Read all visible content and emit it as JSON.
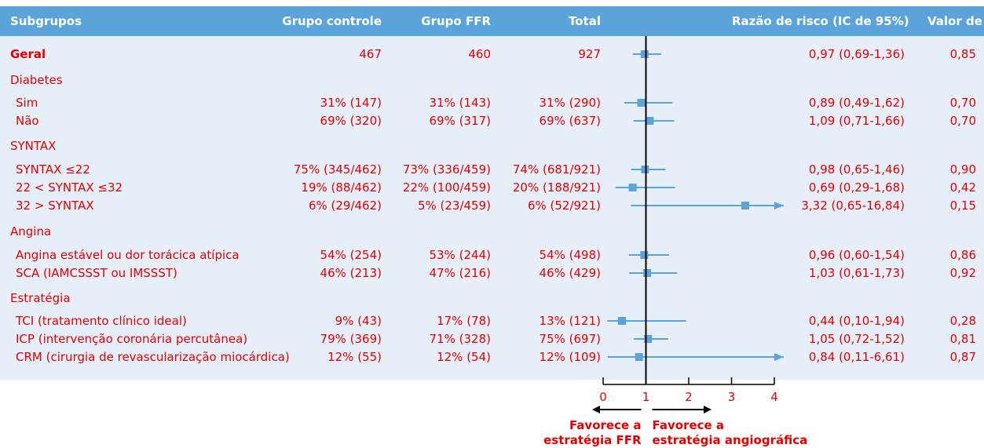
{
  "header": {
    "subgroups": "Subgrupos",
    "control": "Grupo controle",
    "ffr": "Grupo FFR",
    "total": "Total",
    "rr": "Razão de risco (IC de 95%)",
    "p": "Valor de P"
  },
  "chart_data": {
    "type": "forest",
    "xlim": [
      0,
      4
    ],
    "reference_line": 1,
    "ticks": [
      "0",
      "1",
      "2",
      "3",
      "4"
    ],
    "favors_left": [
      "Favorece a",
      "estratégia FFR"
    ],
    "favors_right": [
      "Favorece a",
      "estratégia angiográfica"
    ],
    "colors": {
      "header_bg": "#5ba3d9",
      "band": "#e6eef8",
      "marker": "#5ba3d9",
      "text": "#e60000"
    },
    "rows": [
      {
        "type": "item",
        "bold": true,
        "label": "Geral",
        "control": "467",
        "ffr": "460",
        "total": "927",
        "hr": 0.97,
        "lo": 0.69,
        "hi": 1.36,
        "ci": "0,97 (0,69-1,36)",
        "p": "0,85"
      },
      {
        "type": "group",
        "label": "Diabetes"
      },
      {
        "type": "item",
        "label": "Sim",
        "control": "31% (147)",
        "ffr": "31% (143)",
        "total": "31% (290)",
        "hr": 0.89,
        "lo": 0.49,
        "hi": 1.62,
        "ci": "0,89 (0,49-1,62)",
        "p": "0,70"
      },
      {
        "type": "item",
        "label": "Não",
        "control": "69% (320)",
        "ffr": "69% (317)",
        "total": "69% (637)",
        "hr": 1.09,
        "lo": 0.71,
        "hi": 1.66,
        "ci": "1,09 (0,71-1,66)",
        "p": "0,70"
      },
      {
        "type": "group",
        "label": "SYNTAX"
      },
      {
        "type": "item",
        "label": "SYNTAX ≤22",
        "control": "75% (345/462)",
        "ffr": "73% (336/459)",
        "total": "74% (681/921)",
        "hr": 0.98,
        "lo": 0.65,
        "hi": 1.46,
        "ci": "0,98 (0,65-1,46)",
        "p": "0,90"
      },
      {
        "type": "item",
        "label": "22 < SYNTAX ≤32",
        "control": "19% (88/462)",
        "ffr": "22% (100/459)",
        "total": "20% (188/921)",
        "hr": 0.69,
        "lo": 0.29,
        "hi": 1.68,
        "ci": "0,69 (0,29-1,68)",
        "p": "0,42"
      },
      {
        "type": "item",
        "label": "32 > SYNTAX",
        "control": "6% (29/462)",
        "ffr": "5% (23/459)",
        "total": "6% (52/921)",
        "hr": 3.32,
        "lo": 0.65,
        "hi": 16.84,
        "ci": "3,32 (0,65-16,84)",
        "p": "0,15",
        "arrow": true
      },
      {
        "type": "group",
        "label": "Angina"
      },
      {
        "type": "item",
        "label": "Angina estável ou dor torácica atípica",
        "control": "54% (254)",
        "ffr": "53% (244)",
        "total": "54% (498)",
        "hr": 0.96,
        "lo": 0.6,
        "hi": 1.54,
        "ci": "0,96 (0,60-1,54)",
        "p": "0,86"
      },
      {
        "type": "item",
        "label": "SCA (IAMCSSST ou IMSSST)",
        "control": "46% (213)",
        "ffr": "47% (216)",
        "total": "46% (429)",
        "hr": 1.03,
        "lo": 0.61,
        "hi": 1.73,
        "ci": "1,03 (0,61-1,73)",
        "p": "0,92"
      },
      {
        "type": "group",
        "label": "Estratégia"
      },
      {
        "type": "item",
        "label": "TCI (tratamento clínico ideal)",
        "control": "9% (43)",
        "ffr": "17% (78)",
        "total": "13% (121)",
        "hr": 0.44,
        "lo": 0.1,
        "hi": 1.94,
        "ci": "0,44 (0,10-1,94)",
        "p": "0,28"
      },
      {
        "type": "item",
        "label": "ICP (intervenção coronária percutânea)",
        "control": "79% (369)",
        "ffr": "71% (328)",
        "total": "75% (697)",
        "hr": 1.05,
        "lo": 0.72,
        "hi": 1.52,
        "ci": "1,05 (0,72-1,52)",
        "p": "0,81"
      },
      {
        "type": "item",
        "label": "CRM (cirurgia de revascularização miocárdica)",
        "control": "12% (55)",
        "ffr": "12% (54)",
        "total": "12% (109)",
        "hr": 0.84,
        "lo": 0.11,
        "hi": 6.61,
        "ci": "0,84 (0,11-6,61)",
        "p": "0,87",
        "arrow": true
      }
    ]
  }
}
